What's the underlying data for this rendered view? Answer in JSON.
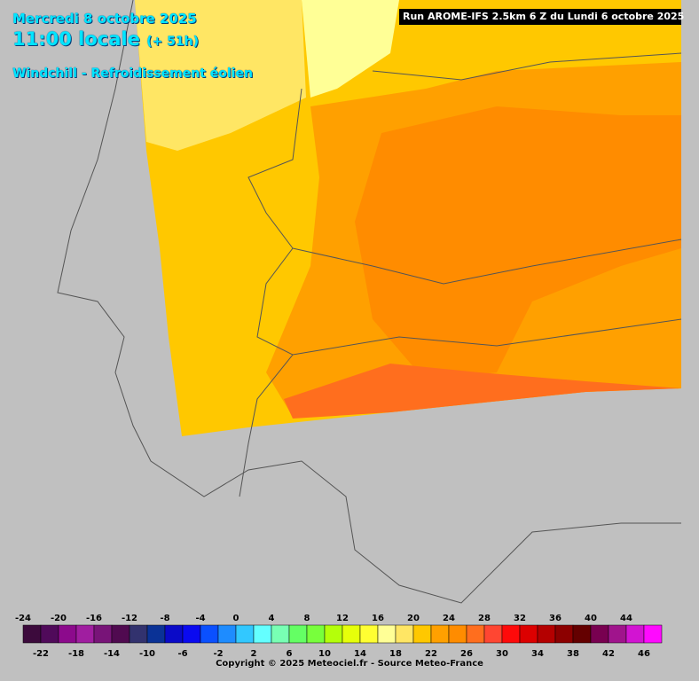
{
  "header": {
    "date": "Mercredi 8 octobre 2025",
    "time": "11:00 locale",
    "lead": "(+ 51h)",
    "field": "Windchill - Refroidissement éolien",
    "run": "Run AROME-IFS 2.5km 6 Z du Lundi 6 octobre 2025"
  },
  "legend": {
    "values": [
      -24,
      -22,
      -20,
      -18,
      -16,
      -14,
      -12,
      -10,
      -8,
      -6,
      -4,
      -2,
      0,
      2,
      4,
      6,
      8,
      10,
      12,
      14,
      16,
      18,
      20,
      22,
      24,
      26,
      28,
      30,
      32,
      34,
      36,
      38,
      40,
      42,
      44,
      46
    ],
    "colors": [
      "#3c0a3c",
      "#500a5a",
      "#8c0a8c",
      "#a01ea0",
      "#781478",
      "#500a50",
      "#32326e",
      "#0a3296",
      "#0a0ac8",
      "#0a0af0",
      "#0a50ff",
      "#1e8cff",
      "#32c8ff",
      "#64ffff",
      "#78ffb4",
      "#64ff64",
      "#78ff3c",
      "#b4ff0a",
      "#e6ff0a",
      "#ffff32",
      "#ffff96",
      "#ffe664",
      "#ffc800",
      "#ffa000",
      "#ff8c00",
      "#ff6e1e",
      "#ff4632",
      "#ff0a0a",
      "#dc0000",
      "#b40000",
      "#8c0000",
      "#640000",
      "#780050",
      "#a0148c",
      "#d214d2",
      "#ff0aff"
    ]
  },
  "footer": {
    "copyright": "Copyright © 2025 Meteociel.fr - Source Meteo-France"
  }
}
